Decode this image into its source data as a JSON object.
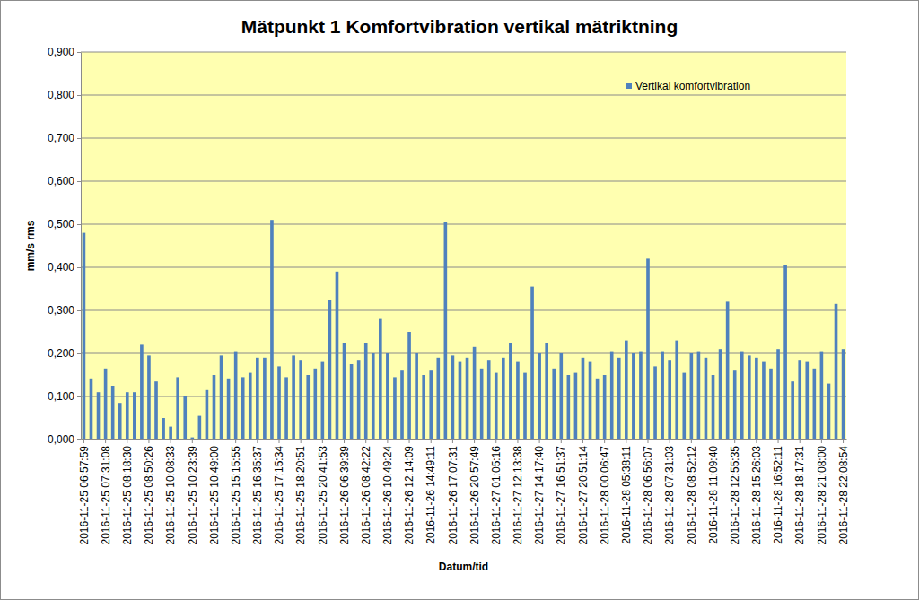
{
  "chart_data": {
    "type": "bar",
    "title": "Mätpunkt 1 Komfortvibration vertikal mätriktning",
    "x_label": "Datum/tid",
    "y_label": "mm/s rms",
    "categories": [
      "2016-11-25 06:57:59",
      null,
      null,
      "2016-11-25 07:31:08",
      null,
      null,
      "2016-11-25 08:18:30",
      null,
      null,
      "2016-11-25 08:50:26",
      null,
      null,
      "2016-11-25 10:08:33",
      null,
      null,
      "2016-11-25 10:23:39",
      null,
      null,
      "2016-11-25 10:49:00",
      null,
      null,
      "2016-11-25 15:15:55",
      null,
      null,
      "2016-11-25 16:35:37",
      null,
      null,
      "2016-11-25 17:15:34",
      null,
      null,
      "2016-11-25 18:20:51",
      null,
      null,
      "2016-11-25 20:41:53",
      null,
      null,
      "2016-11-26 06:39:39",
      null,
      null,
      "2016-11-26 08:42:22",
      null,
      null,
      "2016-11-26 10:49:24",
      null,
      null,
      "2016-11-26 12:14:09",
      null,
      null,
      "2016-11-26 14:49:11",
      null,
      null,
      "2016-11-26 17:07:31",
      null,
      null,
      "2016-11-26 20:57:49",
      null,
      null,
      "2016-11-27 01:05:16",
      null,
      null,
      "2016-11-27 12:13:38",
      null,
      null,
      "2016-11-27 14:17:40",
      null,
      null,
      "2016-11-27 16:51:37",
      null,
      null,
      "2016-11-27 20:51:14",
      null,
      null,
      "2016-11-28 00:06:47",
      null,
      null,
      "2016-11-28 05:38:11",
      null,
      null,
      "2016-11-28 06:56:07",
      null,
      null,
      "2016-11-28 07:31:03",
      null,
      null,
      "2016-11-28 08:52:12",
      null,
      null,
      "2016-11-28 11:09:40",
      null,
      null,
      "2016-11-28 12:55:35",
      null,
      null,
      "2016-11-28 15:26:03",
      null,
      null,
      "2016-11-28 16:52:11",
      null,
      null,
      "2016-11-28 18:17:31",
      null,
      null,
      "2016-11-28 21:08:00",
      null,
      null,
      "2016-11-28 22:08:54"
    ],
    "series": [
      {
        "name": "Vertikal komfortvibration",
        "color": "#4f81bd",
        "values": [
          0.48,
          0.14,
          0.11,
          0.165,
          0.125,
          0.085,
          0.11,
          0.11,
          0.22,
          0.195,
          0.135,
          0.05,
          0.03,
          0.145,
          0.1,
          0.005,
          0.055,
          0.115,
          0.15,
          0.195,
          0.14,
          0.205,
          0.145,
          0.155,
          0.19,
          0.19,
          0.51,
          0.17,
          0.145,
          0.195,
          0.185,
          0.15,
          0.165,
          0.18,
          0.325,
          0.39,
          0.225,
          0.175,
          0.185,
          0.225,
          0.2,
          0.28,
          0.2,
          0.145,
          0.16,
          0.25,
          0.2,
          0.15,
          0.16,
          0.19,
          0.505,
          0.195,
          0.18,
          0.19,
          0.215,
          0.165,
          0.185,
          0.155,
          0.19,
          0.225,
          0.18,
          0.155,
          0.355,
          0.2,
          0.225,
          0.165,
          0.2,
          0.15,
          0.155,
          0.19,
          0.18,
          0.14,
          0.15,
          0.205,
          0.19,
          0.23,
          0.2,
          0.205,
          0.42,
          0.17,
          0.205,
          0.185,
          0.23,
          0.155,
          0.2,
          0.205,
          0.19,
          0.15,
          0.21,
          0.32,
          0.16,
          0.205,
          0.195,
          0.19,
          0.18,
          0.165,
          0.21,
          0.405,
          0.135,
          0.185,
          0.18,
          0.165,
          0.205,
          0.13,
          0.315,
          0.21
        ]
      }
    ],
    "ylim": [
      0,
      0.9
    ],
    "yticks": [
      {
        "value": 0,
        "label": "0,000"
      },
      {
        "value": 0.1,
        "label": "0,100"
      },
      {
        "value": 0.2,
        "label": "0,200"
      },
      {
        "value": 0.3,
        "label": "0,300"
      },
      {
        "value": 0.4,
        "label": "0,400"
      },
      {
        "value": 0.5,
        "label": "0,500"
      },
      {
        "value": 0.6,
        "label": "0,600"
      },
      {
        "value": 0.7,
        "label": "0,700"
      },
      {
        "value": 0.8,
        "label": "0,800"
      },
      {
        "value": 0.9,
        "label": "0,900"
      }
    ],
    "grid": true,
    "legend": "top-right"
  }
}
